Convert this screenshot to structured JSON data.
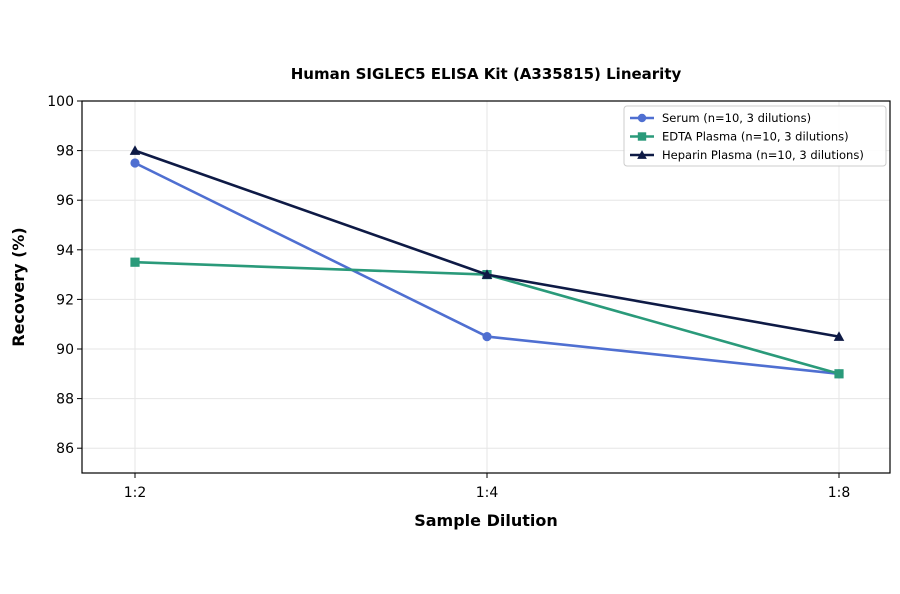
{
  "chart_data": {
    "type": "line",
    "title": "Human SIGLEC5 ELISA Kit (A335815) Linearity",
    "xlabel": "Sample Dilution",
    "ylabel": "Recovery (%)",
    "categories": [
      "1:2",
      "1:4",
      "1:8"
    ],
    "ylim": [
      85,
      100
    ],
    "yticks": [
      86,
      88,
      90,
      92,
      94,
      96,
      98,
      100
    ],
    "grid": true,
    "legend_position": "top-right",
    "series": [
      {
        "name": "Serum (n=10, 3 dilutions)",
        "values": [
          97.5,
          90.5,
          89.0
        ],
        "color": "#4f6fd1",
        "marker": "circle"
      },
      {
        "name": "EDTA Plasma (n=10, 3 dilutions)",
        "values": [
          93.5,
          93.0,
          89.0
        ],
        "color": "#2a9a7a",
        "marker": "square"
      },
      {
        "name": "Heparin Plasma (n=10, 3 dilutions)",
        "values": [
          98.0,
          93.0,
          90.5
        ],
        "color": "#0e1a45",
        "marker": "triangle"
      }
    ]
  }
}
